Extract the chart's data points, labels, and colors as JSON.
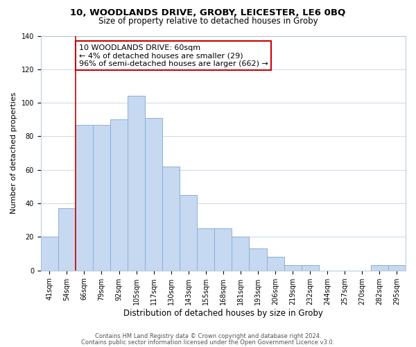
{
  "title": "10, WOODLANDS DRIVE, GROBY, LEICESTER, LE6 0BQ",
  "subtitle": "Size of property relative to detached houses in Groby",
  "xlabel": "Distribution of detached houses by size in Groby",
  "ylabel": "Number of detached properties",
  "bar_labels": [
    "41sqm",
    "54sqm",
    "66sqm",
    "79sqm",
    "92sqm",
    "105sqm",
    "117sqm",
    "130sqm",
    "143sqm",
    "155sqm",
    "168sqm",
    "181sqm",
    "193sqm",
    "206sqm",
    "219sqm",
    "232sqm",
    "244sqm",
    "257sqm",
    "270sqm",
    "282sqm",
    "295sqm"
  ],
  "bar_values": [
    20,
    37,
    87,
    87,
    90,
    104,
    91,
    62,
    45,
    25,
    25,
    20,
    13,
    8,
    3,
    3,
    0,
    0,
    0,
    3,
    3
  ],
  "bar_color": "#c6d9f1",
  "bar_edge_color": "#8ab0d8",
  "ylim": [
    0,
    140
  ],
  "marker_line_color": "#cc0000",
  "annotation_line1": "10 WOODLANDS DRIVE: 60sqm",
  "annotation_line2": "← 4% of detached houses are smaller (29)",
  "annotation_line3": "96% of semi-detached houses are larger (662) →",
  "annotation_box_color": "#ffffff",
  "annotation_box_edge_color": "#cc0000",
  "footer1": "Contains HM Land Registry data © Crown copyright and database right 2024.",
  "footer2": "Contains public sector information licensed under the Open Government Licence v3.0.",
  "background_color": "#ffffff",
  "grid_color": "#c8d8ea",
  "title_fontsize": 9.5,
  "subtitle_fontsize": 8.5,
  "xlabel_fontsize": 8.5,
  "ylabel_fontsize": 8,
  "tick_fontsize": 7,
  "annotation_fontsize": 8,
  "footer_fontsize": 6
}
